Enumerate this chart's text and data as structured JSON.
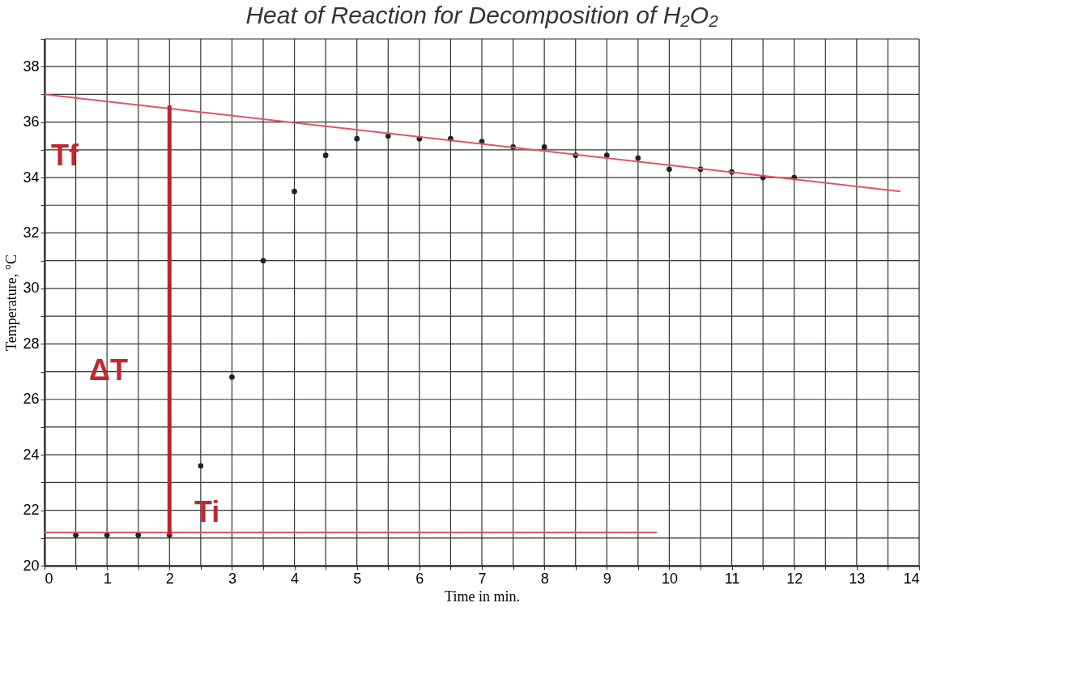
{
  "chart_data": {
    "type": "scatter",
    "title": "Heat of Reaction for Decomposition of H₂O₂",
    "xlabel": "Time in min.",
    "ylabel": "Temperature, °C",
    "xlim": [
      0,
      14
    ],
    "ylim": [
      20,
      39
    ],
    "xticks": [
      0,
      {
        "value": 0.5,
        "label": null
      },
      1,
      {
        "value": 1.5,
        "label": null
      },
      2,
      {
        "value": 2.5,
        "label": null
      },
      3,
      {
        "value": 3.5,
        "label": null
      },
      4,
      {
        "value": 4.5,
        "label": null
      },
      5,
      {
        "value": 5.5,
        "label": null
      },
      6,
      {
        "value": 6.5,
        "label": null
      },
      7,
      {
        "value": 7.5,
        "label": null
      },
      8,
      {
        "value": 8.5,
        "label": null
      },
      9,
      {
        "value": 9.5,
        "label": null
      },
      10,
      {
        "value": 10.5,
        "label": null
      },
      11,
      {
        "value": 11.5,
        "label": null
      },
      12,
      {
        "value": 12.5,
        "label": null
      },
      13,
      {
        "value": 13.5,
        "label": null
      },
      14
    ],
    "yticks": [
      20,
      {
        "value": 21,
        "label": null
      },
      22,
      {
        "value": 23,
        "label": null
      },
      24,
      {
        "value": 25,
        "label": null
      },
      26,
      {
        "value": 27,
        "label": null
      },
      28,
      {
        "value": 29,
        "label": null
      },
      30,
      {
        "value": 31,
        "label": null
      },
      32,
      {
        "value": 33,
        "label": null
      },
      34,
      {
        "value": 35,
        "label": null
      },
      36,
      {
        "value": 37,
        "label": null
      },
      38,
      {
        "value": 39,
        "label": null
      }
    ],
    "grid": true,
    "series": [
      {
        "color": "#222222",
        "marker": "circle",
        "x": [
          0.5,
          1,
          1.5,
          2,
          2.5,
          3,
          3.5,
          4,
          4.5,
          5,
          5.5,
          6,
          6.5,
          7,
          7.5,
          8,
          8.5,
          9,
          9.5,
          10,
          10.5,
          11,
          11.5,
          12
        ],
        "values": [
          21.1,
          21.1,
          21.1,
          21.1,
          23.6,
          26.8,
          31.0,
          33.5,
          34.8,
          35.4,
          35.5,
          35.4,
          35.4,
          35.3,
          35.1,
          35.1,
          34.8,
          34.8,
          34.7,
          34.3,
          34.3,
          34.2,
          34.0,
          34.0
        ]
      },
      {
        "type": "line",
        "marker": "none",
        "line_style": "solid",
        "color": "#e05563",
        "x": [
          0,
          13.7
        ],
        "values": [
          37.0,
          33.5
        ]
      },
      {
        "type": "line",
        "marker": "none",
        "line_style": "solid",
        "color": "#e05563",
        "x": [
          0,
          9.8
        ],
        "values": [
          21.2,
          21.2
        ]
      },
      {
        "type": "line",
        "marker": "none",
        "line_style": "solid",
        "color": "#b8262e",
        "x": [
          2,
          2
        ],
        "values": [
          21.1,
          36.6
        ]
      }
    ],
    "annotations": [
      "Tf",
      "ΔT",
      "Ti"
    ]
  }
}
